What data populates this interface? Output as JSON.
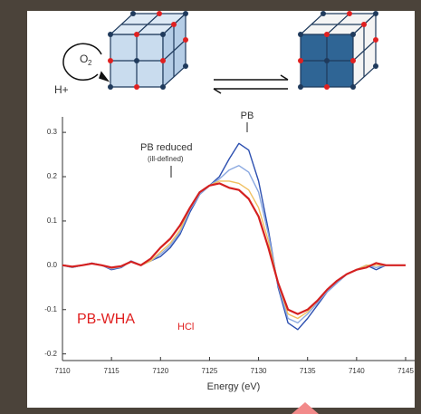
{
  "chart_data": {
    "type": "line",
    "x_label": "Energy (eV)",
    "annotations": [
      "PB",
      "PB reduced",
      "(ill-defined)"
    ],
    "sample_label": {
      "text": "PB-WHA",
      "subscript": "HCl"
    },
    "scheme": {
      "oxygen": "O",
      "oxygen_subscript": "2",
      "proton": "H+"
    },
    "x": [
      7110,
      7111,
      7112,
      7113,
      7114,
      7115,
      7116,
      7117,
      7118,
      7119,
      7120,
      7121,
      7122,
      7123,
      7124,
      7125,
      7126,
      7127,
      7128,
      7129,
      7130,
      7131,
      7132,
      7133,
      7134,
      7135,
      7136,
      7137,
      7138,
      7139,
      7140,
      7141,
      7142,
      7143,
      7144,
      7145
    ],
    "series": [
      {
        "color": "#2c4fb0",
        "values": [
          0.0,
          -0.005,
          0.0,
          0.005,
          0.0,
          -0.01,
          -0.005,
          0.01,
          0.0,
          0.01,
          0.02,
          0.04,
          0.07,
          0.12,
          0.16,
          0.18,
          0.2,
          0.24,
          0.275,
          0.26,
          0.19,
          0.08,
          -0.05,
          -0.13,
          -0.145,
          -0.12,
          -0.09,
          -0.06,
          -0.04,
          -0.02,
          -0.01,
          0.0,
          -0.01,
          0.0,
          0.0,
          0.0
        ]
      },
      {
        "color": "#8aa8e0",
        "values": [
          0.0,
          -0.005,
          0.0,
          0.005,
          0.0,
          -0.008,
          -0.004,
          0.01,
          0.0,
          0.01,
          0.025,
          0.045,
          0.075,
          0.125,
          0.16,
          0.18,
          0.195,
          0.215,
          0.225,
          0.21,
          0.165,
          0.07,
          -0.045,
          -0.12,
          -0.13,
          -0.11,
          -0.085,
          -0.06,
          -0.04,
          -0.02,
          -0.01,
          0.0,
          -0.005,
          0.0,
          0.0,
          0.0
        ]
      },
      {
        "color": "#f0c060",
        "values": [
          0.0,
          -0.004,
          0.0,
          0.004,
          0.0,
          -0.006,
          -0.003,
          0.008,
          0.0,
          0.01,
          0.03,
          0.05,
          0.08,
          0.13,
          0.165,
          0.18,
          0.19,
          0.19,
          0.185,
          0.17,
          0.13,
          0.055,
          -0.04,
          -0.11,
          -0.12,
          -0.105,
          -0.08,
          -0.055,
          -0.035,
          -0.02,
          -0.01,
          0.0,
          0.0,
          0.0,
          0.0,
          0.0
        ]
      },
      {
        "color": "#d42020",
        "values": [
          0.0,
          -0.003,
          0.0,
          0.004,
          0.0,
          -0.005,
          -0.002,
          0.008,
          0.0,
          0.015,
          0.04,
          0.06,
          0.09,
          0.13,
          0.165,
          0.18,
          0.185,
          0.175,
          0.17,
          0.15,
          0.11,
          0.04,
          -0.04,
          -0.1,
          -0.11,
          -0.1,
          -0.08,
          -0.055,
          -0.035,
          -0.02,
          -0.01,
          -0.005,
          0.005,
          0.0,
          0.0,
          0.0
        ]
      }
    ],
    "xlim": [
      7110,
      7145
    ],
    "xticks": [
      7110,
      7115,
      7120,
      7125,
      7130,
      7135,
      7140,
      7145
    ],
    "ylim": [
      -0.215,
      0.335
    ],
    "yticks": [
      0.3,
      0.2,
      0.1,
      {
        "value": 0,
        "label": "0.0"
      },
      -0.1,
      -0.2
    ]
  }
}
